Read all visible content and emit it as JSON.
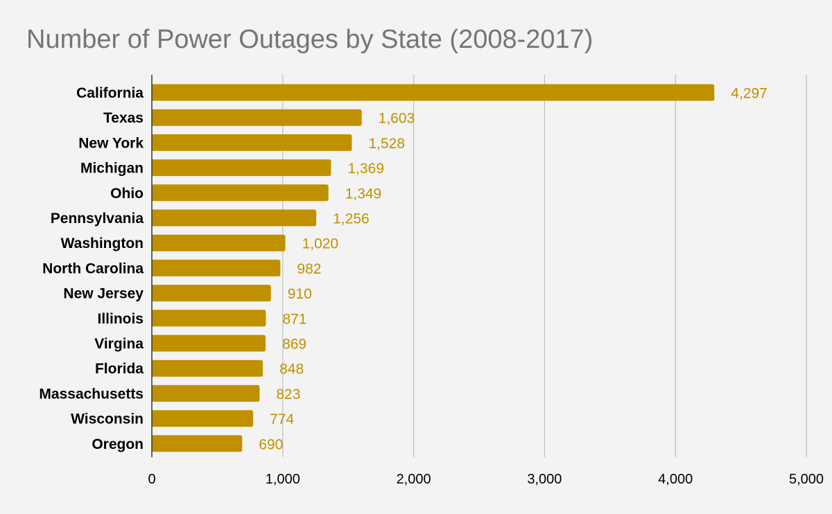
{
  "chart_data": {
    "type": "bar",
    "orientation": "horizontal",
    "title": "Number of Power Outages by State (2008-2017)",
    "xlabel": "",
    "ylabel": "",
    "categories": [
      "California",
      "Texas",
      "New York",
      "Michigan",
      "Ohio",
      "Pennsylvania",
      "Washington",
      "North Carolina",
      "New Jersey",
      "Illinois",
      "Virgina",
      "Florida",
      "Massachusetts",
      "Wisconsin",
      "Oregon"
    ],
    "values": [
      4297,
      1603,
      1528,
      1369,
      1349,
      1256,
      1020,
      982,
      910,
      871,
      869,
      848,
      823,
      774,
      690
    ],
    "data_labels": [
      "4,297",
      "1,603",
      "1,528",
      "1,369",
      "1,349",
      "1,256",
      "1,020",
      "982",
      "910",
      "871",
      "869",
      "848",
      "823",
      "774",
      "690"
    ],
    "xlim": [
      0,
      5000
    ],
    "x_ticks": [
      0,
      1000,
      2000,
      3000,
      4000,
      5000
    ],
    "x_tick_labels": [
      "0",
      "1,000",
      "2,000",
      "3,000",
      "4,000",
      "5,000"
    ],
    "grid": true,
    "legend": "none",
    "colors": {
      "bar": "#bf9000",
      "label": "#bf9000",
      "grid": "#bdbdbd",
      "axis": "#333333",
      "background": "#f3f3f3",
      "title": "#757575"
    }
  }
}
